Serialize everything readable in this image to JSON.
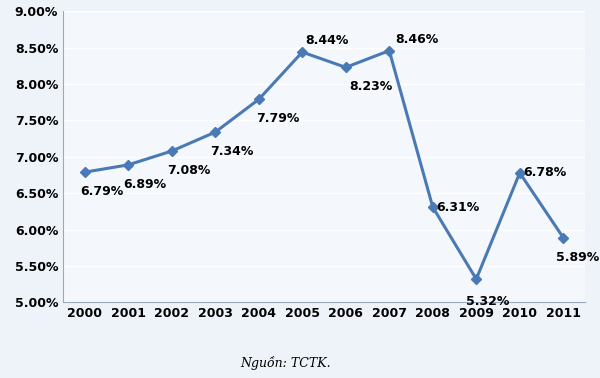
{
  "chart_data": {
    "type": "line",
    "categories": [
      "2000",
      "2001",
      "2002",
      "2003",
      "2004",
      "2005",
      "2006",
      "2007",
      "2008",
      "2009",
      "2010",
      "2011"
    ],
    "values": [
      6.79,
      6.89,
      7.08,
      7.34,
      7.79,
      8.44,
      8.23,
      8.46,
      6.31,
      5.32,
      6.78,
      5.89
    ],
    "value_labels": [
      "6.79%",
      "6.89%",
      "7.08%",
      "7.34%",
      "7.79%",
      "8.44%",
      "8.23%",
      "8.46%",
      "6.31%",
      "5.32%",
      "6.78%",
      "5.89%"
    ],
    "data_labels": true,
    "color": "#4a7ab5",
    "marker": "diamond",
    "line_style": "solid",
    "ylim": [
      5.0,
      9.0
    ],
    "yticks": [
      {
        "value": 5.0,
        "label": "5.00%"
      },
      {
        "value": 5.5,
        "label": "5.50%"
      },
      {
        "value": 6.0,
        "label": "6.00%"
      },
      {
        "value": 6.5,
        "label": "6.50%"
      },
      {
        "value": 7.0,
        "label": "7.00%"
      },
      {
        "value": 7.5,
        "label": "7.50%"
      },
      {
        "value": 8.0,
        "label": "8.00%"
      },
      {
        "value": 8.5,
        "label": "8.50%"
      },
      {
        "value": 9.0,
        "label": "9.00%"
      }
    ],
    "grid": true,
    "source": "Nguồn: TCTK."
  }
}
